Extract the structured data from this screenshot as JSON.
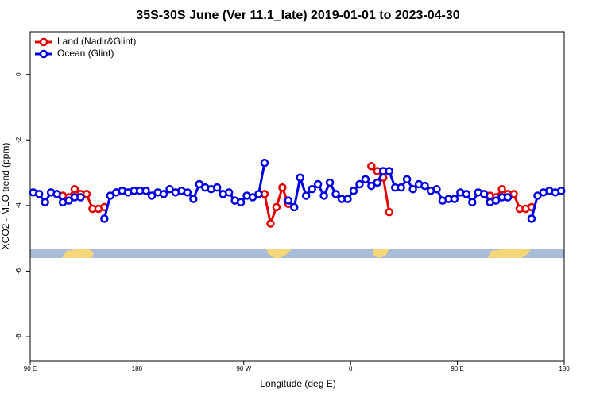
{
  "chart_data": {
    "type": "line",
    "title": "35S-30S June (Ver 11.1_late)   2019-01-01 to 2023-04-30",
    "x_label": "Longitude (deg E)",
    "y_label": "XCO2 - MLO trend (ppm)",
    "x": [
      92.5,
      97.5,
      102.5,
      107.5,
      112.5,
      117.5,
      122.5,
      127.5,
      132.5,
      137.5,
      142.5,
      147.5,
      152.5,
      157.5,
      162.5,
      167.5,
      172.5,
      177.5,
      182.5,
      187.5,
      192.5,
      197.5,
      202.5,
      207.5,
      212.5,
      217.5,
      222.5,
      227.5,
      232.5,
      237.5,
      242.5,
      247.5,
      252.5,
      257.5,
      262.5,
      267.5,
      272.5,
      277.5,
      282.5,
      287.5,
      292.5,
      297.5,
      302.5,
      307.5,
      312.5,
      317.5,
      322.5,
      327.5,
      332.5,
      337.5,
      342.5,
      347.5,
      352.5,
      357.5,
      362.5,
      367.5,
      372.5,
      377.5,
      382.5,
      387.5,
      392.5,
      397.5,
      402.5,
      407.5,
      412.5,
      417.5,
      422.5,
      427.5,
      432.5,
      437.5,
      442.5,
      447.5,
      452.5,
      457.5,
      462.5,
      467.5,
      472.5,
      477.5,
      482.5,
      487.5,
      492.5,
      497.5,
      502.5,
      507.5,
      512.5,
      517.5,
      522.5,
      527.5,
      532.5,
      537.5
    ],
    "series": [
      {
        "name": "Land (Nadir&Glint)",
        "color": "#e00000",
        "values": [
          null,
          null,
          null,
          null,
          null,
          -3.7,
          -3.75,
          -3.5,
          -3.65,
          -3.65,
          -4.1,
          -4.1,
          -4.05,
          null,
          null,
          null,
          null,
          null,
          null,
          null,
          null,
          null,
          null,
          null,
          null,
          null,
          null,
          null,
          null,
          null,
          null,
          null,
          null,
          null,
          null,
          null,
          null,
          null,
          null,
          -3.65,
          -4.55,
          -4.05,
          -3.45,
          -3.95,
          null,
          null,
          null,
          null,
          null,
          null,
          null,
          null,
          null,
          null,
          null,
          null,
          null,
          -2.8,
          -2.95,
          -3.15,
          -4.2,
          null,
          null,
          null,
          null,
          null,
          null,
          null,
          null,
          null,
          null,
          null,
          null,
          null,
          null,
          null,
          null,
          -3.7,
          -3.75,
          -3.5,
          -3.65,
          -3.65,
          -4.1,
          -4.1,
          -4.05,
          null,
          null,
          null,
          null,
          null
        ]
      },
      {
        "name": "Ocean (Glint)",
        "color": "#0000e0",
        "values": [
          -3.6,
          -3.65,
          -3.9,
          -3.6,
          -3.65,
          -3.9,
          -3.85,
          -3.75,
          -3.75,
          null,
          null,
          null,
          -4.4,
          -3.7,
          -3.6,
          -3.55,
          -3.6,
          -3.55,
          -3.55,
          -3.55,
          -3.7,
          -3.6,
          -3.65,
          -3.5,
          -3.6,
          -3.55,
          -3.6,
          -3.8,
          -3.35,
          -3.45,
          -3.5,
          -3.45,
          -3.65,
          -3.6,
          -3.85,
          -3.9,
          -3.7,
          -3.75,
          -3.65,
          -2.7,
          null,
          null,
          null,
          -3.85,
          -4.05,
          -3.15,
          -3.7,
          -3.5,
          -3.35,
          -3.7,
          -3.3,
          -3.65,
          -3.8,
          -3.8,
          -3.55,
          -3.35,
          -3.2,
          -3.4,
          -3.3,
          -2.95,
          -2.95,
          -3.45,
          -3.45,
          -3.2,
          -3.5,
          -3.35,
          -3.4,
          -3.55,
          -3.5,
          -3.85,
          -3.8,
          -3.8,
          -3.6,
          -3.65,
          -3.9,
          -3.6,
          -3.65,
          -3.9,
          -3.85,
          -3.75,
          -3.75,
          null,
          null,
          null,
          -4.4,
          -3.7,
          -3.6,
          -3.55,
          -3.6,
          -3.55
        ]
      }
    ],
    "xlim": [
      90,
      540
    ],
    "xticks": [
      {
        "value": 90,
        "label": "90 E"
      },
      180,
      {
        "value": 270,
        "label": "90 W"
      },
      {
        "value": 360,
        "label": "0"
      },
      {
        "value": 450,
        "label": "90 E"
      },
      {
        "value": 540,
        "label": "180"
      }
    ],
    "ylim": [
      -8.75,
      1.3
    ],
    "yticks": [
      0,
      -2,
      -4,
      -6,
      -8
    ],
    "legend": "top-left"
  }
}
